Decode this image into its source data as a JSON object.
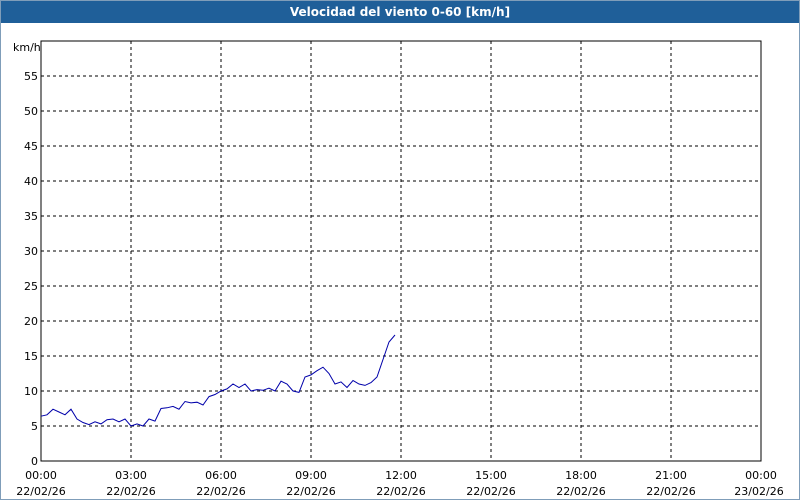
{
  "title": "Velocidad del viento 0-60 [km/h]",
  "chart_data": {
    "type": "line",
    "title": "Velocidad del viento 0-60 [km/h]",
    "ylabel": "km/h",
    "ylim": [
      0,
      60
    ],
    "yticks": [
      0,
      5,
      10,
      15,
      20,
      25,
      30,
      35,
      40,
      45,
      50,
      55
    ],
    "xlim_hours": [
      0,
      24
    ],
    "xticks": [
      {
        "time": "00:00",
        "date": "22/02/26"
      },
      {
        "time": "03:00",
        "date": "22/02/26"
      },
      {
        "time": "06:00",
        "date": "22/02/26"
      },
      {
        "time": "09:00",
        "date": "22/02/26"
      },
      {
        "time": "12:00",
        "date": "22/02/26"
      },
      {
        "time": "15:00",
        "date": "22/02/26"
      },
      {
        "time": "18:00",
        "date": "22/02/26"
      },
      {
        "time": "21:00",
        "date": "22/02/26"
      },
      {
        "time": "00:00",
        "date": "23/02/26"
      }
    ],
    "grid": true,
    "series": [
      {
        "color": "#0000aa",
        "x": [
          0.0,
          0.2,
          0.4,
          0.6,
          0.8,
          1.0,
          1.2,
          1.4,
          1.6,
          1.8,
          2.0,
          2.2,
          2.4,
          2.6,
          2.8,
          3.0,
          3.2,
          3.4,
          3.6,
          3.8,
          4.0,
          4.2,
          4.4,
          4.6,
          4.8,
          5.0,
          5.2,
          5.4,
          5.6,
          5.8,
          6.0,
          6.2,
          6.4,
          6.6,
          6.8,
          7.0,
          7.2,
          7.4,
          7.6,
          7.8,
          8.0,
          8.2,
          8.4,
          8.6,
          8.8,
          9.0,
          9.2,
          9.4,
          9.6,
          9.8,
          10.0,
          10.2,
          10.4,
          10.6,
          10.8,
          11.0,
          11.2,
          11.4,
          11.6,
          11.8
        ],
        "y": [
          6.4,
          6.6,
          7.4,
          7.0,
          6.6,
          7.4,
          6.0,
          5.5,
          5.2,
          5.6,
          5.3,
          5.9,
          6.0,
          5.6,
          6.0,
          5.0,
          5.3,
          5.0,
          6.0,
          5.7,
          7.5,
          7.6,
          7.8,
          7.4,
          8.5,
          8.3,
          8.4,
          8.0,
          9.2,
          9.5,
          10.0,
          10.3,
          11.0,
          10.5,
          11.0,
          10.0,
          10.2,
          10.1,
          10.4,
          10.0,
          11.4,
          11.0,
          10.0,
          9.8,
          12.0,
          12.3,
          12.9,
          13.4,
          12.5,
          11.0,
          11.3,
          10.5,
          11.5,
          11.0,
          10.8,
          11.2,
          12.0,
          14.5,
          17.0,
          18.0
        ]
      }
    ]
  }
}
